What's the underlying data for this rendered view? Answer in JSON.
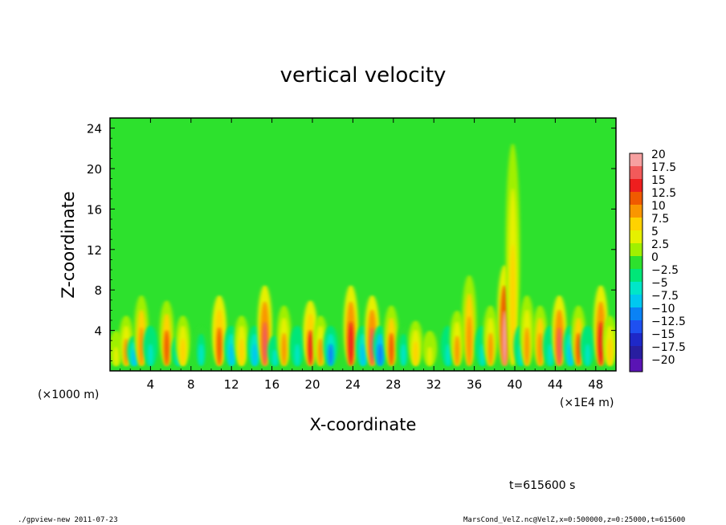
{
  "chart_data": {
    "type": "heatmap",
    "title": "vertical velocity",
    "xlabel": "X-coordinate",
    "ylabel": "Z-coordinate",
    "x_unit_left": "(×1000 m)",
    "x_unit_right": "(×1E4 m)",
    "xlim": [
      0,
      50
    ],
    "ylim": [
      0,
      25
    ],
    "x_ticks": [
      "4",
      "8",
      "12",
      "16",
      "20",
      "24",
      "28",
      "32",
      "36",
      "40",
      "44",
      "48"
    ],
    "x_tick_values": [
      4,
      8,
      12,
      16,
      20,
      24,
      28,
      32,
      36,
      40,
      44,
      48
    ],
    "y_ticks": [
      "4",
      "8",
      "12",
      "16",
      "20",
      "24"
    ],
    "y_tick_values": [
      4,
      8,
      12,
      16,
      20,
      24
    ],
    "colorbar": {
      "labels": [
        "20",
        "17.5",
        "15",
        "12.5",
        "10",
        "7.5",
        "5",
        "2.5",
        "0",
        "−2.5",
        "−5",
        "−7.5",
        "−10",
        "−12.5",
        "−15",
        "−17.5",
        "−20"
      ],
      "colors": [
        "#f6a0a0",
        "#f25a5a",
        "#ee1e1e",
        "#f05a00",
        "#fa9600",
        "#ffd200",
        "#e6f000",
        "#a0f000",
        "#2de12d",
        "#00e678",
        "#00e6c8",
        "#00c8f0",
        "#0a82f5",
        "#1e50f0",
        "#1e28c8",
        "#281ea0",
        "#5a14b4"
      ]
    },
    "columns": [
      {
        "x": 0.6,
        "top": 3.5,
        "amp": 6
      },
      {
        "x": 1.6,
        "top": 5,
        "amp": 9
      },
      {
        "x": 2.4,
        "top": 3,
        "amp": -7
      },
      {
        "x": 3.1,
        "top": 7,
        "amp": 11
      },
      {
        "x": 4.0,
        "top": 4,
        "amp": -6
      },
      {
        "x": 5.6,
        "top": 6.5,
        "amp": 12
      },
      {
        "x": 6.8,
        "top": 3,
        "amp": -5
      },
      {
        "x": 7.2,
        "top": 5,
        "amp": 8
      },
      {
        "x": 9.0,
        "top": 4,
        "amp": -4
      },
      {
        "x": 10.8,
        "top": 7,
        "amp": 13
      },
      {
        "x": 12.0,
        "top": 4,
        "amp": -7
      },
      {
        "x": 13.0,
        "top": 5,
        "amp": 7
      },
      {
        "x": 14.3,
        "top": 4,
        "amp": -8
      },
      {
        "x": 15.3,
        "top": 8,
        "amp": 17
      },
      {
        "x": 16.3,
        "top": 3,
        "amp": -6
      },
      {
        "x": 17.2,
        "top": 6,
        "amp": 10
      },
      {
        "x": 18.5,
        "top": 4,
        "amp": -6
      },
      {
        "x": 19.8,
        "top": 6.5,
        "amp": 14
      },
      {
        "x": 20.8,
        "top": 5,
        "amp": 9
      },
      {
        "x": 21.8,
        "top": 4,
        "amp": -9
      },
      {
        "x": 23.8,
        "top": 8,
        "amp": 16
      },
      {
        "x": 25.0,
        "top": 4,
        "amp": -8
      },
      {
        "x": 25.9,
        "top": 7,
        "amp": 17
      },
      {
        "x": 26.7,
        "top": 4,
        "amp": -11
      },
      {
        "x": 27.8,
        "top": 6,
        "amp": 12
      },
      {
        "x": 29.0,
        "top": 4,
        "amp": -4
      },
      {
        "x": 30.2,
        "top": 4.5,
        "amp": 8
      },
      {
        "x": 31.6,
        "top": 3.5,
        "amp": 6
      },
      {
        "x": 33.4,
        "top": 4,
        "amp": -5
      },
      {
        "x": 34.3,
        "top": 5.5,
        "amp": 9
      },
      {
        "x": 35.5,
        "top": 9,
        "amp": 11
      },
      {
        "x": 36.8,
        "top": 4,
        "amp": -5
      },
      {
        "x": 37.6,
        "top": 6,
        "amp": 10
      },
      {
        "x": 39.0,
        "top": 10,
        "amp": 19
      },
      {
        "x": 39.8,
        "top": 22,
        "amp": 8
      },
      {
        "x": 40.6,
        "top": 4,
        "amp": -6
      },
      {
        "x": 41.2,
        "top": 7,
        "amp": 9
      },
      {
        "x": 42.5,
        "top": 6,
        "amp": 11
      },
      {
        "x": 43.5,
        "top": 4,
        "amp": -5
      },
      {
        "x": 44.4,
        "top": 7,
        "amp": 17
      },
      {
        "x": 45.5,
        "top": 4,
        "amp": -7
      },
      {
        "x": 46.3,
        "top": 6,
        "amp": 12
      },
      {
        "x": 47.2,
        "top": 4,
        "amp": -6
      },
      {
        "x": 48.5,
        "top": 8,
        "amp": 15
      },
      {
        "x": 49.4,
        "top": 5,
        "amp": 8
      }
    ]
  },
  "time_label": "t=615600 s",
  "footer": {
    "left": "./gpview-new   2011-07-23",
    "right": "MarsCond_VelZ.nc@VelZ,x=0:500000,z=0:25000,t=615600"
  }
}
